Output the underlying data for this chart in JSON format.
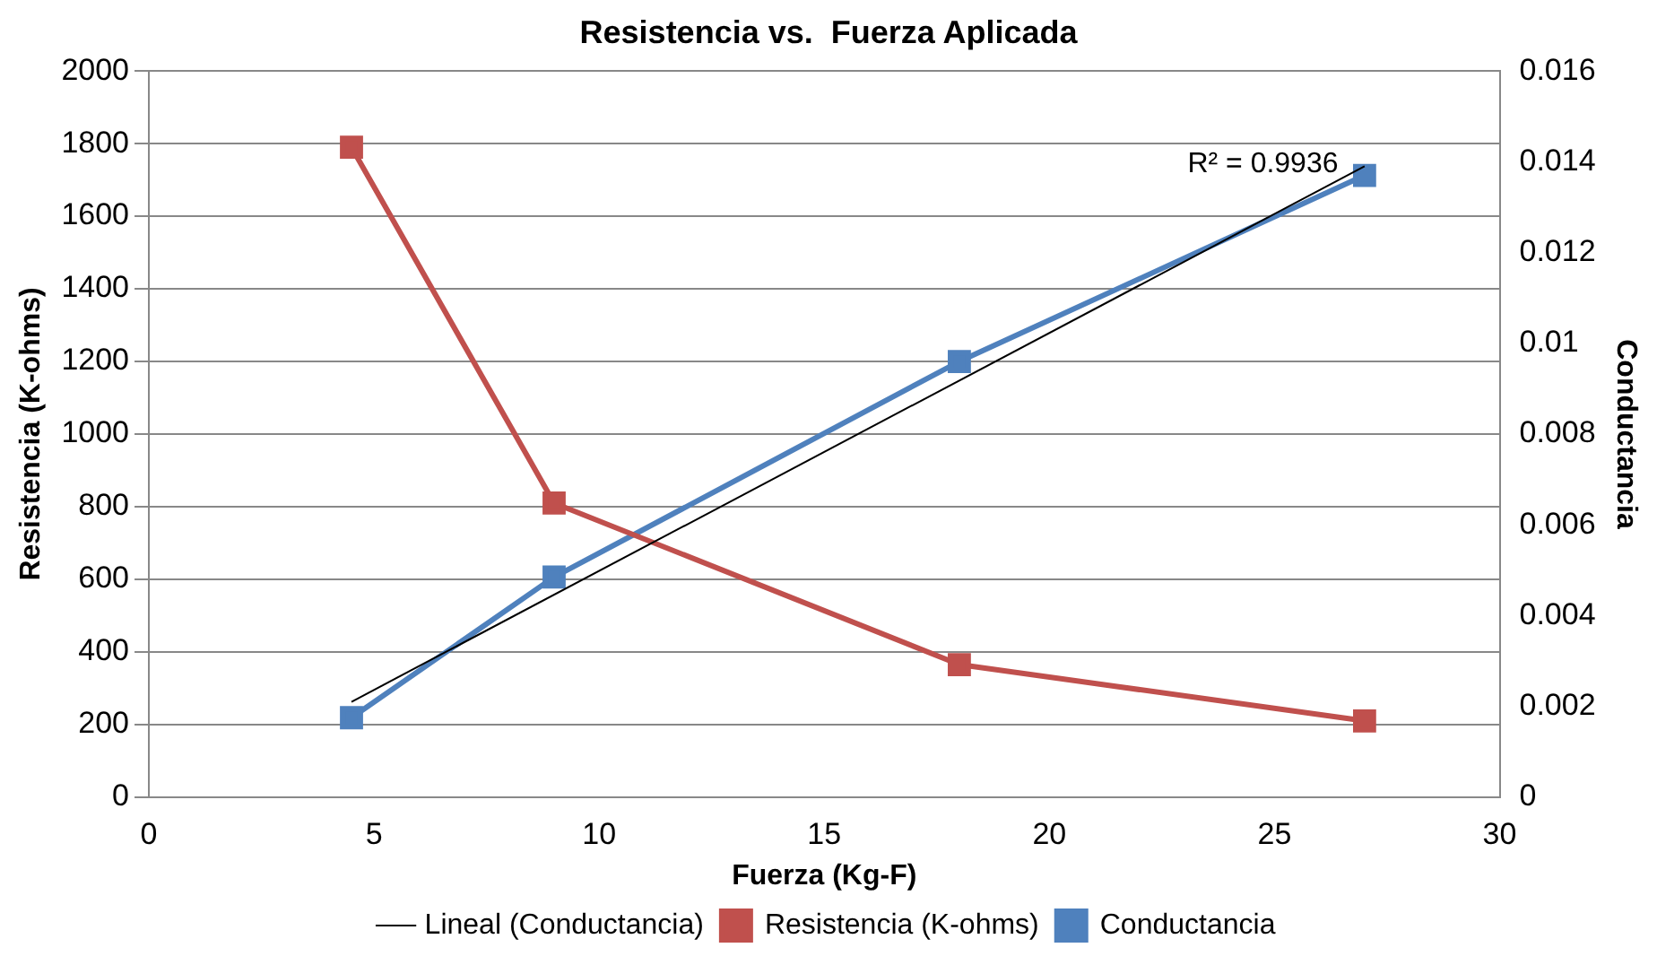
{
  "chart_data": {
    "type": "line",
    "title": "Resistencia vs.  Fuerza Aplicada",
    "xlabel": "Fuerza (Kg-F)",
    "ylabel": "Resistencia (K-ohms)",
    "y2label": "Conductancia",
    "x": [
      4.5,
      9,
      18,
      27
    ],
    "series": [
      {
        "name": "Resistencia (K-ohms)",
        "color": "#c0504d",
        "values": [
          1790,
          810,
          365,
          210
        ]
      },
      {
        "name": "Conductancia",
        "color": "#4f81bd",
        "axis": "y2",
        "values": [
          0.00175,
          0.00485,
          0.0096,
          0.0137
        ]
      },
      {
        "name": "Lineal (Conductancia)",
        "color": "#000000",
        "axis": "y2",
        "marker": "none",
        "x": [
          4.5,
          27
        ],
        "values": [
          0.0021,
          0.0139
        ]
      }
    ],
    "xlim": [
      0,
      30
    ],
    "xticks": [
      0,
      5,
      10,
      15,
      20,
      25,
      30
    ],
    "ylim": [
      0,
      2000
    ],
    "yticks": [
      0,
      200,
      400,
      600,
      800,
      1000,
      1200,
      1400,
      1600,
      1800,
      2000
    ],
    "y2lim": [
      0,
      0.016
    ],
    "y2ticks": [
      0,
      0.002,
      0.004,
      0.006,
      0.008,
      0.01,
      0.012,
      0.014,
      0.016
    ],
    "annotations": [
      "R² = 0.9936"
    ],
    "grid": "y",
    "legend": "bottom",
    "marker": "square",
    "line_style": "solid"
  }
}
